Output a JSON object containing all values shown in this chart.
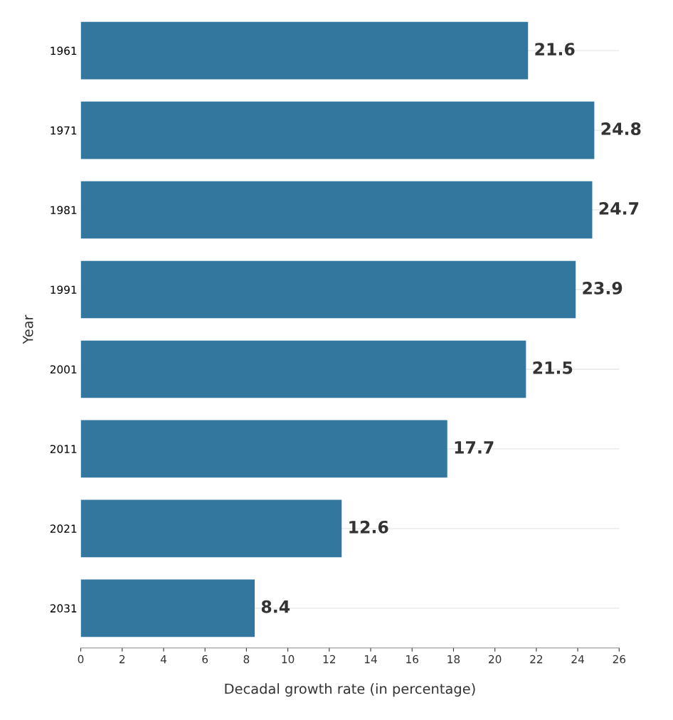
{
  "chart_data": {
    "type": "bar",
    "orientation": "horizontal",
    "categories": [
      "1961",
      "1971",
      "1981",
      "1991",
      "2001",
      "2011",
      "2021",
      "2031"
    ],
    "values": [
      21.6,
      24.8,
      24.7,
      23.9,
      21.5,
      17.7,
      12.6,
      8.4
    ],
    "color": "#33779f",
    "xlabel": "Decadal growth rate (in percentage)",
    "ylabel": "Year",
    "xlim": [
      0,
      26
    ],
    "xticks": [
      0,
      2,
      4,
      6,
      8,
      10,
      12,
      14,
      16,
      18,
      20,
      22,
      24,
      26
    ],
    "grid": "y",
    "data_labels": true
  }
}
